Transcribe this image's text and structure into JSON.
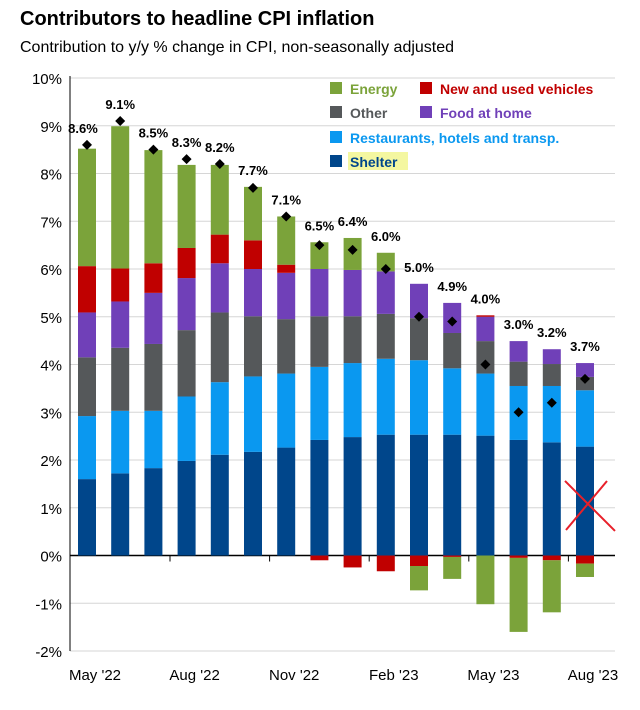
{
  "chart_data": {
    "type": "bar",
    "stacked": true,
    "title": "Contributors to headline CPI inflation",
    "subtitle": "Contribution to y/y % change in CPI, non-seasonally adjusted",
    "xlabel": "",
    "ylabel": "",
    "ylim": [
      -2,
      10
    ],
    "yticks": [
      "-2%",
      "-1%",
      "0%",
      "1%",
      "2%",
      "3%",
      "4%",
      "5%",
      "6%",
      "7%",
      "8%",
      "9%",
      "10%"
    ],
    "grid": true,
    "legend_position": "top-right",
    "categories": [
      "May '22",
      "Jun '22",
      "Jul '22",
      "Aug '22",
      "Sep '22",
      "Oct '22",
      "Nov '22",
      "Dec '22",
      "Jan '23",
      "Feb '23",
      "Mar '23",
      "Apr '23",
      "May '23",
      "Jun '23",
      "Jul '23",
      "Aug '23"
    ],
    "xtick_labels": [
      "May '22",
      "Aug '22",
      "Nov '22",
      "Feb '23",
      "May '23",
      "Aug '23"
    ],
    "series": [
      {
        "name": "Shelter",
        "color": "#00468b",
        "values": [
          1.6,
          1.72,
          1.83,
          1.98,
          2.11,
          2.17,
          2.26,
          2.42,
          2.48,
          2.53,
          2.53,
          2.53,
          2.51,
          2.42,
          2.37,
          2.28
        ]
      },
      {
        "name": "Restaurants, hotels and transp.",
        "color": "#0a98f0",
        "values": [
          1.32,
          1.31,
          1.2,
          1.35,
          1.52,
          1.58,
          1.55,
          1.53,
          1.55,
          1.59,
          1.56,
          1.39,
          1.3,
          1.13,
          1.18,
          1.18
        ]
      },
      {
        "name": "Other",
        "color": "#55585a",
        "values": [
          1.23,
          1.32,
          1.4,
          1.39,
          1.46,
          1.26,
          1.14,
          1.06,
          0.98,
          0.94,
          0.88,
          0.74,
          0.68,
          0.51,
          0.46,
          0.28
        ]
      },
      {
        "name": "Food at home",
        "color": "#7040b8",
        "values": [
          0.94,
          0.97,
          1.07,
          1.09,
          1.03,
          0.99,
          0.97,
          0.99,
          0.97,
          0.89,
          0.72,
          0.63,
          0.51,
          0.43,
          0.31,
          0.29
        ]
      },
      {
        "name": "New and used vehicles",
        "color": "#c00000",
        "values": [
          0.97,
          0.69,
          0.62,
          0.63,
          0.6,
          0.6,
          0.17,
          -0.1,
          -0.25,
          -0.33,
          -0.22,
          -0.03,
          0.03,
          -0.05,
          -0.1,
          -0.17
        ]
      },
      {
        "name": "Energy",
        "color": "#7ba33a",
        "values": [
          2.46,
          2.98,
          2.37,
          1.74,
          1.46,
          1.12,
          1.01,
          0.56,
          0.67,
          0.39,
          -0.51,
          -0.46,
          -1.02,
          -1.55,
          -1.09,
          -0.28
        ]
      }
    ],
    "headline": {
      "values": [
        8.6,
        9.1,
        8.5,
        8.3,
        8.2,
        7.7,
        7.1,
        6.5,
        6.4,
        6.0,
        5.0,
        4.9,
        4.0,
        3.0,
        3.2,
        3.7
      ],
      "labels": [
        "8.6%",
        "9.1%",
        "8.5%",
        "8.3%",
        "8.2%",
        "7.7%",
        "7.1%",
        "6.5%",
        "6.4%",
        "6.0%",
        "5.0%",
        "4.9%",
        "4.0%",
        "3.0%",
        "3.2%",
        "3.7%"
      ],
      "marker": "diamond"
    },
    "legend": [
      {
        "name": "Energy",
        "color": "#7ba33a"
      },
      {
        "name": "New and used vehicles",
        "color": "#c00000"
      },
      {
        "name": "Other",
        "color": "#55585a"
      },
      {
        "name": "Food at home",
        "color": "#7040b8"
      },
      {
        "name": "Restaurants, hotels and transp.",
        "color": "#0a98f0"
      },
      {
        "name": "Shelter",
        "color": "#00468b",
        "highlight": "#f4f7a0"
      }
    ],
    "annotation": {
      "type": "red-x-mark",
      "on": "Aug '23",
      "color": "#e8202a"
    }
  }
}
